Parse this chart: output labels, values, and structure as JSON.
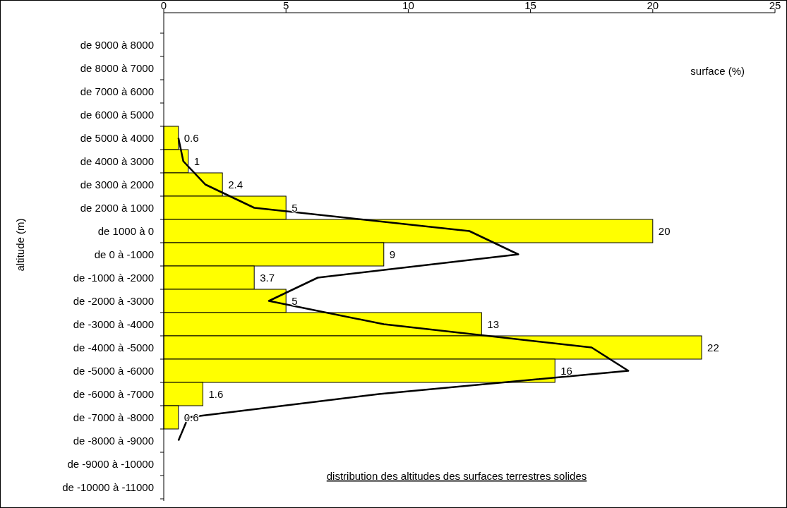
{
  "chart_data": {
    "type": "bar",
    "orientation": "horizontal",
    "title": "distribution des altitudes des surfaces terrestres solides",
    "xlabel": "surface (%)",
    "ylabel": "altitude (m)",
    "categories": [
      "de 9000 à 8000",
      "de 8000 à 7000",
      "de 7000 à 6000",
      "de 6000 à 5000",
      "de 5000 à 4000",
      "de 4000 à 3000",
      "de 3000 à 2000",
      "de 2000 à 1000",
      "de 1000 à 0",
      "de 0 à -1000",
      "de -1000 à -2000",
      "de -2000 à -3000",
      "de -3000 à -4000",
      "de -4000 à -5000",
      "de -5000 à -6000",
      "de -6000 à -7000",
      "de -7000 à -8000",
      "de -8000 à -9000",
      "de -9000 à -10000",
      "de -10000 à -11000"
    ],
    "series": [
      {
        "color": "#ffff00",
        "values": [
          null,
          null,
          null,
          null,
          0.6,
          1,
          2.4,
          5,
          20,
          9,
          3.7,
          5,
          13,
          22,
          16,
          1.6,
          0.6,
          null,
          null,
          null
        ],
        "value_labels": [
          null,
          null,
          null,
          null,
          "0.6",
          "1",
          "2.4",
          "5",
          "20",
          "9",
          "3.7",
          "5",
          "13",
          "22",
          "16",
          "1.6",
          "0.6",
          null,
          null,
          null
        ]
      },
      {
        "type": "line",
        "color": "#000000",
        "values": [
          null,
          null,
          null,
          null,
          0.6,
          0.8,
          1.7,
          3.7,
          12.5,
          14.5,
          6.3,
          4.3,
          9,
          17.5,
          19,
          8.8,
          1,
          0.6,
          null,
          null
        ]
      }
    ],
    "xlim": [
      0,
      25
    ],
    "xticks": [
      0,
      5,
      10,
      15,
      20,
      25
    ],
    "grid": false,
    "marker": "none"
  }
}
